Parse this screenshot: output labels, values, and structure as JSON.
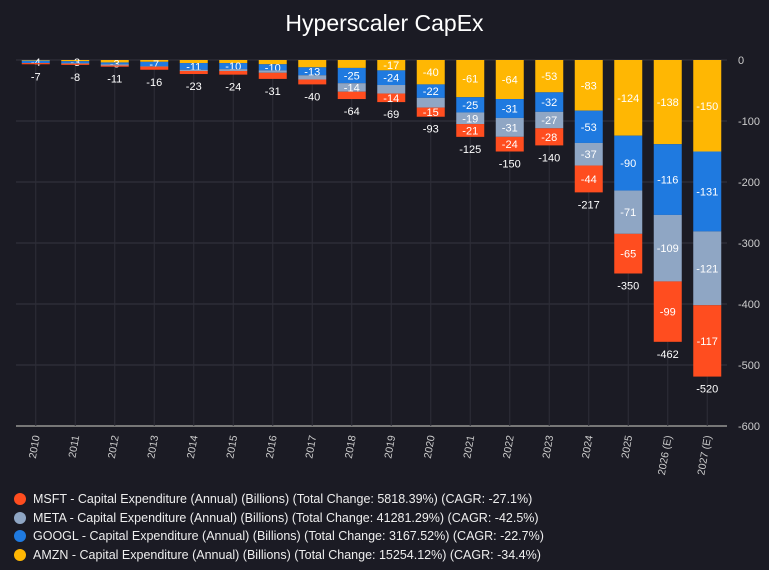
{
  "chart_data": {
    "type": "bar",
    "stacked": true,
    "title": "Hyperscaler CapEx",
    "xlabel": "",
    "ylabel": "",
    "ylim": [
      -600,
      0
    ],
    "yticks": [
      0,
      -100,
      -200,
      -300,
      -400,
      -500,
      -600
    ],
    "y_axis_position": "right",
    "grid": true,
    "legend_position": "bottom-left",
    "categories": [
      "2010",
      "2011",
      "2012",
      "2013",
      "2014",
      "2015",
      "2016",
      "2017",
      "2018",
      "2019",
      "2020",
      "2021",
      "2022",
      "2023",
      "2024",
      "2025",
      "2026 (E)",
      "2027 (E)"
    ],
    "series": [
      {
        "name": "AMZN - Capital Expenditure (Annual) (Billions) (Total Change: 15254.12%) (CAGR: -34.4%)",
        "key": "AMZN",
        "color": "#ffb703",
        "values": [
          -1,
          -2,
          -4,
          -3,
          -5,
          -5,
          -7,
          -12,
          -13,
          -17,
          -40,
          -61,
          -64,
          -53,
          -83,
          -124,
          -138,
          -150
        ]
      },
      {
        "name": "GOOGL - Capital Expenditure (Annual) (Billions) (Total Change: 3167.52%) (CAGR: -22.7%)",
        "key": "GOOGL",
        "color": "#1f7ae0",
        "values": [
          -4,
          -3,
          -3,
          -7,
          -11,
          -10,
          -10,
          -13,
          -25,
          -24,
          -22,
          -25,
          -31,
          -32,
          -53,
          -90,
          -116,
          -131
        ]
      },
      {
        "name": "META - Capital Expenditure (Annual) (Billions) (Total Change: 41281.29%) (CAGR: -42.5%)",
        "key": "META",
        "color": "#8fa6c4",
        "values": [
          0,
          -1,
          -2,
          -1,
          -2,
          -3,
          -4,
          -7,
          -14,
          -14,
          -16,
          -19,
          -31,
          -27,
          -37,
          -71,
          -109,
          -121
        ]
      },
      {
        "name": "MSFT - Capital Expenditure (Annual) (Billions) (Total Change: 5818.39%) (CAGR: -27.1%)",
        "key": "MSFT",
        "color": "#ff4d1f",
        "values": [
          -2,
          -2,
          -2,
          -5,
          -5,
          -6,
          -10,
          -8,
          -12,
          -14,
          -15,
          -21,
          -24,
          -28,
          -44,
          -65,
          -99,
          -117
        ]
      }
    ],
    "segment_labels": {
      "AMZN": [
        null,
        null,
        null,
        null,
        null,
        null,
        null,
        null,
        null,
        "-17",
        "-40",
        "-61",
        "-64",
        "-53",
        "-83",
        "-124",
        "-138",
        "-150"
      ],
      "GOOGL": [
        "-4",
        "-3",
        "-3",
        "-7",
        "-11",
        "-10",
        "-10",
        "-13",
        "-25",
        "-24",
        "-22",
        "-25",
        "-31",
        "-32",
        "-53",
        "-90",
        "-116",
        "-131"
      ],
      "META": [
        null,
        null,
        null,
        null,
        null,
        null,
        null,
        null,
        "-14",
        null,
        null,
        "-19",
        "-31",
        "-27",
        "-37",
        "-71",
        "-109",
        "-121"
      ],
      "MSFT": [
        null,
        null,
        null,
        null,
        null,
        null,
        null,
        null,
        null,
        "-14",
        "-15",
        "-21",
        "-24",
        "-28",
        "-44",
        "-65",
        "-99",
        "-117"
      ]
    },
    "totals": [
      "-7",
      "-8",
      "-11",
      "-16",
      "-23",
      "-24",
      "-31",
      "-40",
      "-64",
      "-69",
      "-93",
      "-125",
      "-150",
      "-140",
      "-217",
      "-350",
      "-462",
      "-520"
    ]
  },
  "legend_order": [
    "MSFT",
    "META",
    "GOOGL",
    "AMZN"
  ]
}
